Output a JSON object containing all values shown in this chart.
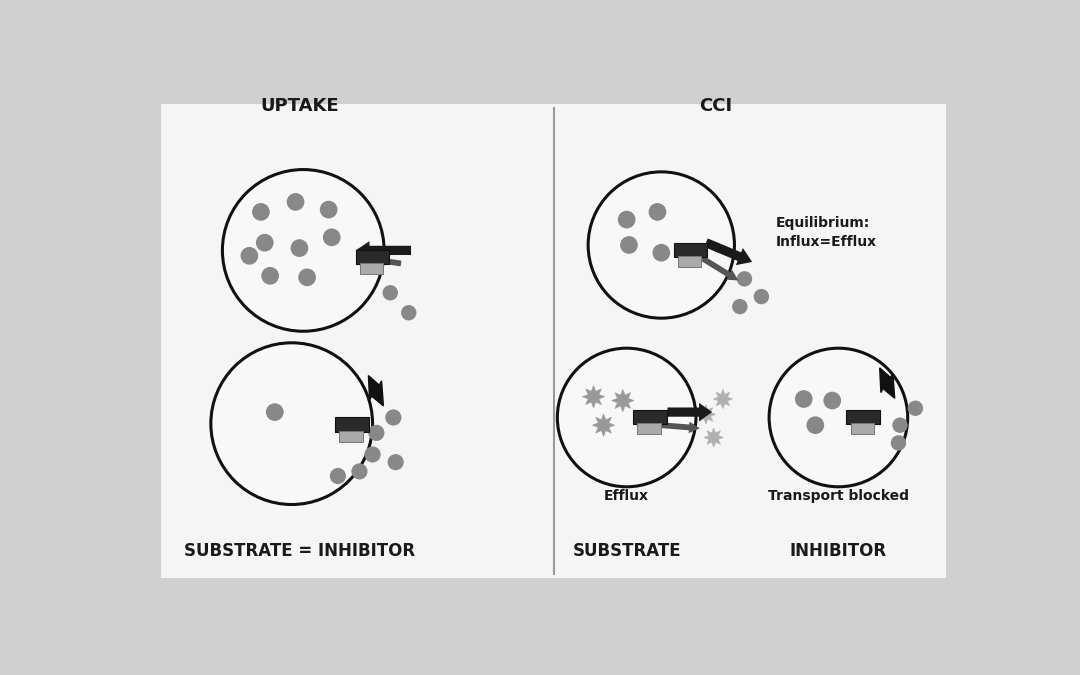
{
  "background_color": "#d0d0d0",
  "panel_bg": "#f5f5f5",
  "title_left": "UPTAKE",
  "title_right": "CCI",
  "label_substrate_inhibitor": "SUBSTRATE = INHIBITOR",
  "label_substrate": "SUBSTRATE",
  "label_inhibitor": "INHIBITOR",
  "label_equilibrium": "Equilibrium:\nInflux=Efflux",
  "label_efflux": "Efflux",
  "label_transport_blocked": "Transport blocked",
  "cell_edge_color": "#111111",
  "dot_color": "#888888",
  "transporter_dark": "#2a2a2a",
  "transporter_light": "#aaaaaa",
  "divider_color": "#999999",
  "font_size_title": 13,
  "font_size_label": 12,
  "font_size_small": 9
}
